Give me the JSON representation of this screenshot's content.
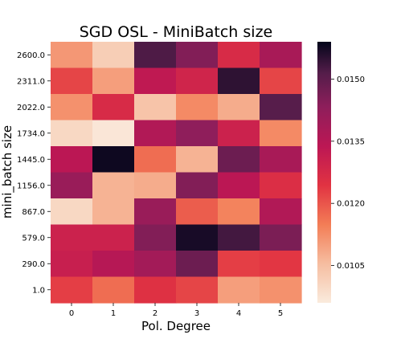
{
  "chart_data": {
    "type": "heatmap",
    "title": "SGD OSL - MiniBatch size",
    "xlabel": "Pol. Degree",
    "ylabel": "mini_batch size",
    "x_categories": [
      "0",
      "1",
      "2",
      "3",
      "4",
      "5"
    ],
    "y_categories": [
      "2600.0",
      "2311.0",
      "2022.0",
      "1734.0",
      "1445.0",
      "1156.0",
      "867.0",
      "579.0",
      "290.0",
      "1.0"
    ],
    "values": [
      [
        0.0111,
        0.0102,
        0.0152,
        0.0145,
        0.0127,
        0.0138
      ],
      [
        0.0122,
        0.011,
        0.0133,
        0.0129,
        0.0155,
        0.0122
      ],
      [
        0.0112,
        0.0127,
        0.0104,
        0.0113,
        0.0108,
        0.0151
      ],
      [
        0.01,
        0.0097,
        0.0136,
        0.0143,
        0.013,
        0.0113
      ],
      [
        0.0134,
        0.0158,
        0.0117,
        0.0107,
        0.0148,
        0.0138
      ],
      [
        0.0141,
        0.0107,
        0.0108,
        0.0145,
        0.0134,
        0.0126
      ],
      [
        0.01,
        0.0107,
        0.0141,
        0.0119,
        0.0114,
        0.0136
      ],
      [
        0.013,
        0.013,
        0.0145,
        0.0157,
        0.0153,
        0.0146
      ],
      [
        0.0131,
        0.0135,
        0.0139,
        0.0148,
        0.0123,
        0.0124
      ],
      [
        0.0123,
        0.0117,
        0.0125,
        0.0122,
        0.011,
        0.0112
      ]
    ],
    "colorbar": {
      "ticks": [
        "0.0105",
        "0.0120",
        "0.0135",
        "0.0150"
      ],
      "range": [
        0.0096,
        0.0159
      ]
    },
    "colormap": "rocket_r"
  }
}
